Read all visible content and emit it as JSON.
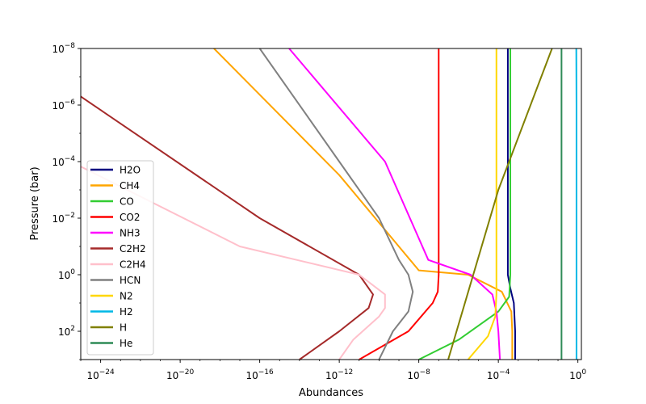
{
  "chart_data": {
    "type": "line",
    "xlabel": "Abundances",
    "ylabel": "Pressure (bar)",
    "x_scale": "log",
    "y_scale": "log",
    "y_inverted": true,
    "xlim": [
      1e-25,
      1.5
    ],
    "ylim": [
      1000,
      1e-08
    ],
    "grid": false,
    "legend_position": "center-left",
    "x_ticks": [
      {
        "value": 1e-24,
        "base": "10",
        "exp": "−24"
      },
      {
        "value": 1e-20,
        "base": "10",
        "exp": "−20"
      },
      {
        "value": 1e-16,
        "base": "10",
        "exp": "−16"
      },
      {
        "value": 1e-12,
        "base": "10",
        "exp": "−12"
      },
      {
        "value": 1e-08,
        "base": "10",
        "exp": "−8"
      },
      {
        "value": 0.0001,
        "base": "10",
        "exp": "−4"
      },
      {
        "value": 1,
        "base": "10",
        "exp": "0"
      }
    ],
    "y_ticks": [
      {
        "value": 1e-08,
        "base": "10",
        "exp": "−8"
      },
      {
        "value": 1e-06,
        "base": "10",
        "exp": "−6"
      },
      {
        "value": 0.0001,
        "base": "10",
        "exp": "−4"
      },
      {
        "value": 0.01,
        "base": "10",
        "exp": "−2"
      },
      {
        "value": 1,
        "base": "10",
        "exp": "0"
      },
      {
        "value": 100,
        "base": "10",
        "exp": "2"
      }
    ],
    "series": [
      {
        "name": "H2O",
        "color": "#000080",
        "points": [
          [
            0.0003,
            1e-08
          ],
          [
            0.0003,
            0.01
          ],
          [
            0.0003,
            1
          ],
          [
            0.0004,
            3
          ],
          [
            0.0006,
            10
          ],
          [
            0.0007,
            100
          ],
          [
            0.0007,
            1000
          ]
        ]
      },
      {
        "name": "CH4",
        "color": "#ffa500",
        "points": [
          [
            5e-19,
            1e-08
          ],
          [
            1e-12,
            0.0003
          ],
          [
            1e-08,
            0.7
          ],
          [
            3e-06,
            1
          ],
          [
            0.00015,
            4
          ],
          [
            0.00045,
            20
          ],
          [
            0.0005,
            100
          ],
          [
            0.0005,
            1000
          ]
        ]
      },
      {
        "name": "CO",
        "color": "#32cd32",
        "points": [
          [
            0.0004,
            1e-08
          ],
          [
            0.0004,
            1
          ],
          [
            0.00035,
            6
          ],
          [
            0.0001,
            20
          ],
          [
            1e-06,
            200
          ],
          [
            1e-08,
            1000
          ]
        ]
      },
      {
        "name": "CO2",
        "color": "#ff0000",
        "points": [
          [
            1e-07,
            1e-08
          ],
          [
            1e-07,
            1
          ],
          [
            9e-08,
            4
          ],
          [
            5e-08,
            10
          ],
          [
            3e-09,
            100
          ],
          [
            1e-11,
            1000
          ]
        ]
      },
      {
        "name": "NH3",
        "color": "#ff00ff",
        "points": [
          [
            3e-15,
            1e-08
          ],
          [
            2e-10,
            0.0001
          ],
          [
            3e-08,
            0.3
          ],
          [
            4e-06,
            1
          ],
          [
            5e-05,
            5
          ],
          [
            8e-05,
            20
          ],
          [
            0.0001,
            100
          ],
          [
            0.00012,
            1000
          ]
        ]
      },
      {
        "name": "C2H2",
        "color": "#a52a2a",
        "points": [
          [
            1e-25,
            5e-07
          ],
          [
            1e-16,
            0.01
          ],
          [
            1e-11,
            1
          ],
          [
            5e-11,
            5
          ],
          [
            3e-11,
            15
          ],
          [
            1e-12,
            100
          ],
          [
            1e-14,
            1000
          ]
        ]
      },
      {
        "name": "C2H4",
        "color": "#ffc0cb",
        "points": [
          [
            1e-25,
            0.00015
          ],
          [
            1e-17,
            0.1
          ],
          [
            1e-11,
            1
          ],
          [
            2e-10,
            5
          ],
          [
            2e-10,
            15
          ],
          [
            1e-10,
            30
          ],
          [
            5e-12,
            200
          ],
          [
            1e-12,
            1000
          ]
        ]
      },
      {
        "name": "HCN",
        "color": "#808080",
        "points": [
          [
            1e-16,
            1e-08
          ],
          [
            1e-12,
            0.0001
          ],
          [
            1e-10,
            0.01
          ],
          [
            1e-09,
            0.3
          ],
          [
            3e-09,
            1
          ],
          [
            5e-09,
            4
          ],
          [
            3e-09,
            20
          ],
          [
            5e-10,
            100
          ],
          [
            1e-10,
            1000
          ]
        ]
      },
      {
        "name": "N2",
        "color": "#ffd700",
        "points": [
          [
            8e-05,
            1e-08
          ],
          [
            8e-05,
            1
          ],
          [
            8e-05,
            5
          ],
          [
            7e-05,
            30
          ],
          [
            3e-05,
            150
          ],
          [
            3e-06,
            1000
          ]
        ]
      },
      {
        "name": "H2",
        "color": "#00b8e6",
        "points": [
          [
            0.83,
            1e-08
          ],
          [
            0.84,
            1e-07
          ],
          [
            0.85,
            1e-06
          ],
          [
            0.85,
            0.0001
          ],
          [
            0.85,
            1000
          ]
        ]
      },
      {
        "name": "H",
        "color": "#808000",
        "points": [
          [
            0.05,
            1e-08
          ],
          [
            0.0001,
            0.001
          ],
          [
            3e-07,
            1000
          ]
        ]
      },
      {
        "name": "He",
        "color": "#2e8b57",
        "points": [
          [
            0.15,
            1e-08
          ],
          [
            0.15,
            1000
          ]
        ]
      }
    ]
  }
}
